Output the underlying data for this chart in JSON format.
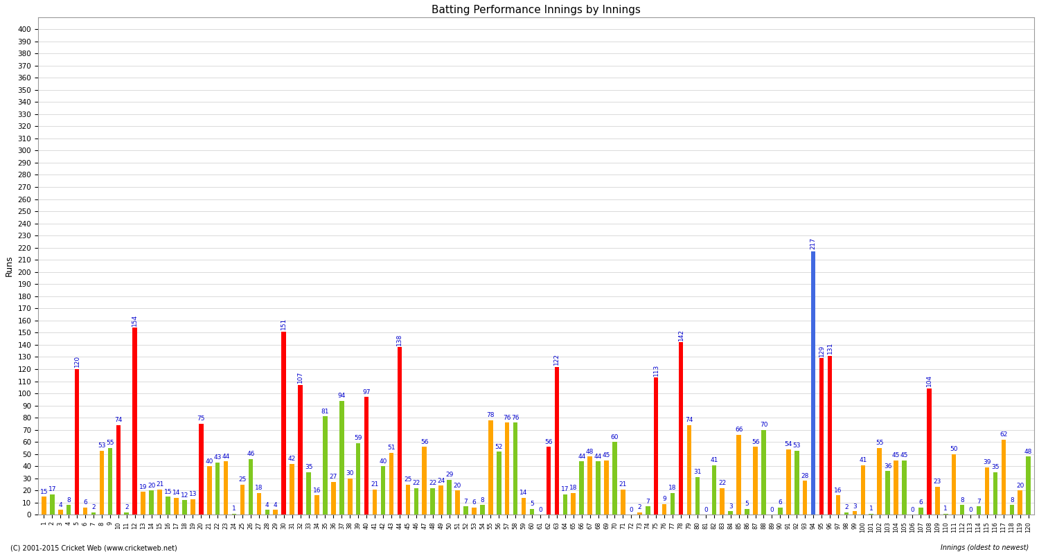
{
  "title": "Batting Performance Innings by Innings",
  "ylabel": "Runs",
  "xlabel_note": "Innings (oldest to newest)",
  "footer": "(C) 2001-2015 Cricket Web (www.cricketweb.net)",
  "ylim": [
    0,
    410
  ],
  "yticks": [
    0,
    10,
    20,
    30,
    40,
    50,
    60,
    70,
    80,
    90,
    100,
    110,
    120,
    130,
    140,
    150,
    160,
    170,
    180,
    190,
    200,
    210,
    220,
    230,
    240,
    250,
    260,
    270,
    280,
    290,
    300,
    310,
    320,
    330,
    340,
    350,
    360,
    370,
    380,
    390,
    400
  ],
  "innings": [
    {
      "num": 1,
      "score": 15,
      "color": "orange"
    },
    {
      "num": 2,
      "score": 17,
      "color": "green"
    },
    {
      "num": 3,
      "score": 4,
      "color": "orange"
    },
    {
      "num": 4,
      "score": 8,
      "color": "green"
    },
    {
      "num": 5,
      "score": 120,
      "color": "red"
    },
    {
      "num": 6,
      "score": 6,
      "color": "orange"
    },
    {
      "num": 7,
      "score": 2,
      "color": "green"
    },
    {
      "num": 8,
      "score": 53,
      "color": "orange"
    },
    {
      "num": 9,
      "score": 55,
      "color": "green"
    },
    {
      "num": 10,
      "score": 74,
      "color": "red"
    },
    {
      "num": 11,
      "score": 2,
      "color": "green"
    },
    {
      "num": 12,
      "score": 154,
      "color": "red"
    },
    {
      "num": 13,
      "score": 19,
      "color": "orange"
    },
    {
      "num": 14,
      "score": 20,
      "color": "green"
    },
    {
      "num": 15,
      "score": 21,
      "color": "orange"
    },
    {
      "num": 16,
      "score": 15,
      "color": "green"
    },
    {
      "num": 17,
      "score": 14,
      "color": "orange"
    },
    {
      "num": 18,
      "score": 12,
      "color": "green"
    },
    {
      "num": 19,
      "score": 13,
      "color": "orange"
    },
    {
      "num": 20,
      "score": 75,
      "color": "red"
    },
    {
      "num": 21,
      "score": 40,
      "color": "orange"
    },
    {
      "num": 22,
      "score": 43,
      "color": "green"
    },
    {
      "num": 23,
      "score": 44,
      "color": "orange"
    },
    {
      "num": 24,
      "score": 1,
      "color": "green"
    },
    {
      "num": 25,
      "score": 25,
      "color": "orange"
    },
    {
      "num": 26,
      "score": 46,
      "color": "green"
    },
    {
      "num": 27,
      "score": 18,
      "color": "orange"
    },
    {
      "num": 28,
      "score": 4,
      "color": "green"
    },
    {
      "num": 29,
      "score": 4,
      "color": "orange"
    },
    {
      "num": 30,
      "score": 151,
      "color": "red"
    },
    {
      "num": 31,
      "score": 42,
      "color": "orange"
    },
    {
      "num": 32,
      "score": 107,
      "color": "red"
    },
    {
      "num": 33,
      "score": 35,
      "color": "green"
    },
    {
      "num": 34,
      "score": 16,
      "color": "orange"
    },
    {
      "num": 35,
      "score": 81,
      "color": "green"
    },
    {
      "num": 36,
      "score": 27,
      "color": "orange"
    },
    {
      "num": 37,
      "score": 94,
      "color": "green"
    },
    {
      "num": 38,
      "score": 30,
      "color": "orange"
    },
    {
      "num": 39,
      "score": 59,
      "color": "green"
    },
    {
      "num": 40,
      "score": 97,
      "color": "red"
    },
    {
      "num": 41,
      "score": 21,
      "color": "orange"
    },
    {
      "num": 42,
      "score": 40,
      "color": "green"
    },
    {
      "num": 43,
      "score": 51,
      "color": "orange"
    },
    {
      "num": 44,
      "score": 138,
      "color": "red"
    },
    {
      "num": 45,
      "score": 25,
      "color": "orange"
    },
    {
      "num": 46,
      "score": 22,
      "color": "green"
    },
    {
      "num": 47,
      "score": 56,
      "color": "orange"
    },
    {
      "num": 48,
      "score": 22,
      "color": "green"
    },
    {
      "num": 49,
      "score": 24,
      "color": "orange"
    },
    {
      "num": 50,
      "score": 29,
      "color": "green"
    },
    {
      "num": 51,
      "score": 20,
      "color": "orange"
    },
    {
      "num": 52,
      "score": 7,
      "color": "green"
    },
    {
      "num": 53,
      "score": 6,
      "color": "orange"
    },
    {
      "num": 54,
      "score": 8,
      "color": "green"
    },
    {
      "num": 55,
      "score": 78,
      "color": "orange"
    },
    {
      "num": 56,
      "score": 52,
      "color": "green"
    },
    {
      "num": 57,
      "score": 76,
      "color": "orange"
    },
    {
      "num": 58,
      "score": 76,
      "color": "green"
    },
    {
      "num": 59,
      "score": 14,
      "color": "orange"
    },
    {
      "num": 60,
      "score": 5,
      "color": "green"
    },
    {
      "num": 61,
      "score": 0,
      "color": "orange"
    },
    {
      "num": 62,
      "score": 56,
      "color": "red"
    },
    {
      "num": 63,
      "score": 122,
      "color": "red"
    },
    {
      "num": 64,
      "score": 17,
      "color": "green"
    },
    {
      "num": 65,
      "score": 18,
      "color": "orange"
    },
    {
      "num": 66,
      "score": 44,
      "color": "green"
    },
    {
      "num": 67,
      "score": 48,
      "color": "orange"
    },
    {
      "num": 68,
      "score": 44,
      "color": "green"
    },
    {
      "num": 69,
      "score": 45,
      "color": "orange"
    },
    {
      "num": 70,
      "score": 60,
      "color": "green"
    },
    {
      "num": 71,
      "score": 21,
      "color": "orange"
    },
    {
      "num": 72,
      "score": 0,
      "color": "green"
    },
    {
      "num": 73,
      "score": 2,
      "color": "orange"
    },
    {
      "num": 74,
      "score": 7,
      "color": "green"
    },
    {
      "num": 75,
      "score": 113,
      "color": "red"
    },
    {
      "num": 76,
      "score": 9,
      "color": "orange"
    },
    {
      "num": 77,
      "score": 18,
      "color": "green"
    },
    {
      "num": 78,
      "score": 142,
      "color": "red"
    },
    {
      "num": 79,
      "score": 74,
      "color": "orange"
    },
    {
      "num": 80,
      "score": 31,
      "color": "green"
    },
    {
      "num": 81,
      "score": 0,
      "color": "orange"
    },
    {
      "num": 82,
      "score": 41,
      "color": "green"
    },
    {
      "num": 83,
      "score": 22,
      "color": "orange"
    },
    {
      "num": 84,
      "score": 3,
      "color": "green"
    },
    {
      "num": 85,
      "score": 66,
      "color": "orange"
    },
    {
      "num": 86,
      "score": 5,
      "color": "green"
    },
    {
      "num": 87,
      "score": 56,
      "color": "orange"
    },
    {
      "num": 88,
      "score": 70,
      "color": "green"
    },
    {
      "num": 89,
      "score": 0,
      "color": "orange"
    },
    {
      "num": 90,
      "score": 6,
      "color": "green"
    },
    {
      "num": 91,
      "score": 54,
      "color": "orange"
    },
    {
      "num": 92,
      "score": 53,
      "color": "green"
    },
    {
      "num": 93,
      "score": 28,
      "color": "orange"
    },
    {
      "num": 94,
      "score": 217,
      "color": "blue"
    },
    {
      "num": 95,
      "score": 129,
      "color": "red"
    },
    {
      "num": 96,
      "score": 131,
      "color": "red"
    },
    {
      "num": 97,
      "score": 16,
      "color": "orange"
    },
    {
      "num": 98,
      "score": 2,
      "color": "green"
    },
    {
      "num": 99,
      "score": 3,
      "color": "orange"
    },
    {
      "num": 100,
      "score": 41,
      "color": "orange"
    },
    {
      "num": 101,
      "score": 1,
      "color": "green"
    },
    {
      "num": 102,
      "score": 55,
      "color": "orange"
    },
    {
      "num": 103,
      "score": 36,
      "color": "green"
    },
    {
      "num": 104,
      "score": 45,
      "color": "orange"
    },
    {
      "num": 105,
      "score": 45,
      "color": "green"
    },
    {
      "num": 106,
      "score": 0,
      "color": "orange"
    },
    {
      "num": 107,
      "score": 6,
      "color": "green"
    },
    {
      "num": 108,
      "score": 104,
      "color": "red"
    },
    {
      "num": 109,
      "score": 23,
      "color": "orange"
    },
    {
      "num": 110,
      "score": 1,
      "color": "green"
    },
    {
      "num": 111,
      "score": 50,
      "color": "orange"
    },
    {
      "num": 112,
      "score": 8,
      "color": "green"
    },
    {
      "num": 113,
      "score": 0,
      "color": "orange"
    },
    {
      "num": 114,
      "score": 7,
      "color": "green"
    },
    {
      "num": 115,
      "score": 39,
      "color": "orange"
    },
    {
      "num": 116,
      "score": 35,
      "color": "green"
    },
    {
      "num": 117,
      "score": 62,
      "color": "orange"
    },
    {
      "num": 118,
      "score": 8,
      "color": "green"
    },
    {
      "num": 119,
      "score": 20,
      "color": "orange"
    },
    {
      "num": 120,
      "score": 48,
      "color": "green"
    }
  ],
  "bar_colors": {
    "red": "#ff0000",
    "orange": "#ffa500",
    "green": "#7fc820",
    "blue": "#4169e1"
  },
  "background_color": "#ffffff",
  "grid_color": "#cccccc",
  "text_color": "#0000cd",
  "label_fontsize": 6.5,
  "tick_fontsize": 6,
  "ytick_fontsize": 7.5,
  "title_fontsize": 11,
  "bar_width": 0.55
}
